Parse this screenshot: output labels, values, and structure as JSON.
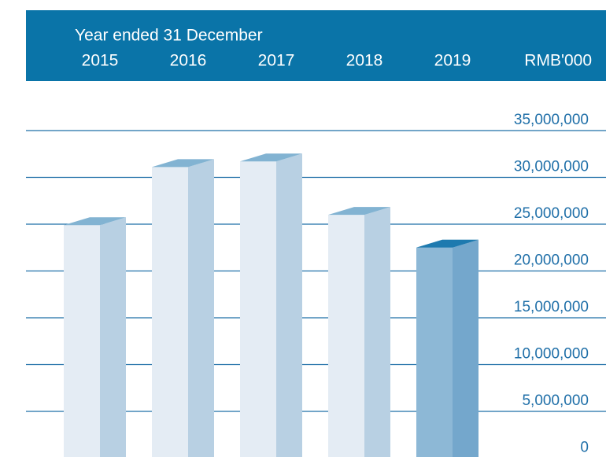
{
  "chart_data": {
    "type": "bar3d",
    "subtitle": "Year ended 31 December",
    "y_unit": "RMB'000",
    "categories": [
      "2015",
      "2016",
      "2017",
      "2018",
      "2019"
    ],
    "values": [
      24900000,
      31100000,
      31700000,
      26000000,
      22500000
    ],
    "colors": [
      "#e4ecf4",
      "#e4ecf4",
      "#e4ecf4",
      "#e4ecf4",
      "#8db8d6"
    ],
    "ylim": [
      0,
      35000000
    ],
    "yticks": [
      0,
      {
        "value": 5000000,
        "label": "5,000,000"
      },
      {
        "value": 10000000,
        "label": "10,000,000"
      },
      {
        "value": 15000000,
        "label": "15,000,000"
      },
      {
        "value": 20000000,
        "label": "20,000,000"
      },
      {
        "value": 25000000,
        "label": "25,000,000"
      },
      {
        "value": 30000000,
        "label": "30,000,000"
      },
      {
        "value": 35000000,
        "label": "35,000,000"
      }
    ],
    "grid": true
  }
}
